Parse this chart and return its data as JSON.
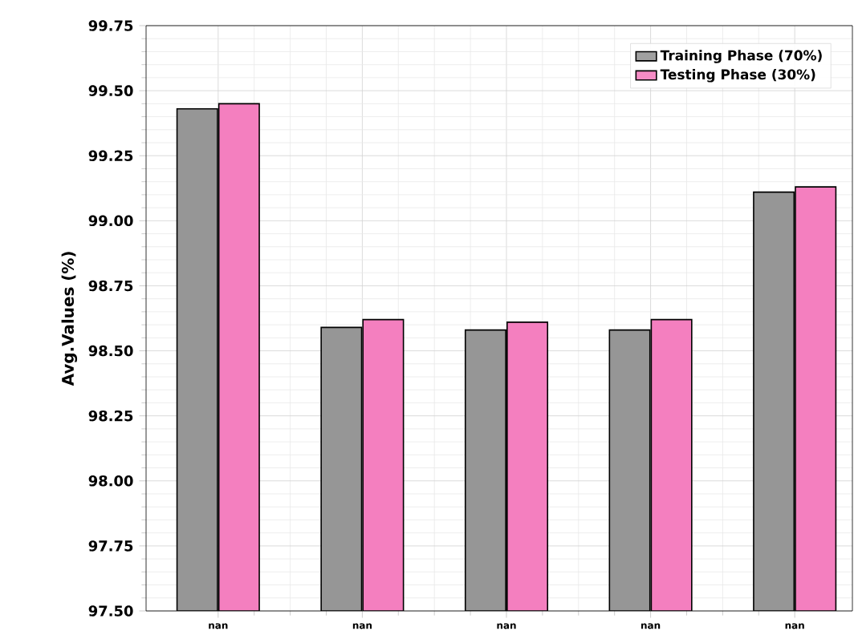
{
  "chart_data": {
    "type": "bar",
    "ylabel": "Avg.Values (%)",
    "categories": [
      "nan",
      "nan",
      "nan",
      "nan",
      "nan"
    ],
    "series": [
      {
        "name": "Training Phase (70%)",
        "color": "#969696",
        "values": [
          99.43,
          98.59,
          98.58,
          98.58,
          99.11
        ]
      },
      {
        "name": "Testing Phase (30%)",
        "color": "#f47fbf",
        "values": [
          99.45,
          98.62,
          98.61,
          98.62,
          99.13
        ]
      }
    ],
    "ylim": [
      97.5,
      99.75
    ],
    "yticks": [
      {
        "value": 97.5,
        "label": "97.50"
      },
      97.75,
      {
        "value": 98.0,
        "label": "98.00"
      },
      98.25,
      {
        "value": 98.5,
        "label": "98.50"
      },
      98.75,
      {
        "value": 99.0,
        "label": "99.00"
      },
      99.25,
      {
        "value": 99.5,
        "label": "99.50"
      },
      99.75
    ],
    "grid": true,
    "legend": "top right"
  }
}
